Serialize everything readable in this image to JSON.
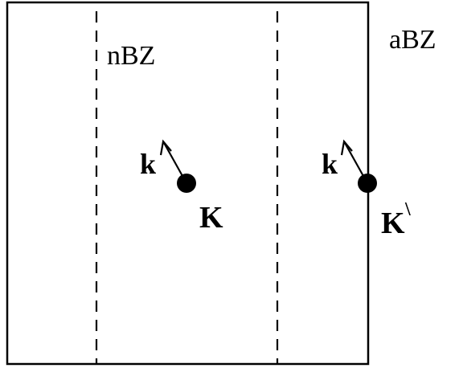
{
  "labels": {
    "nbz": "nBZ",
    "abz": "aBZ",
    "k_left": "k",
    "K_left": "K",
    "k_right": "k",
    "K_right": "K",
    "K_right_prime": "\\"
  },
  "colors": {
    "stroke": "#000000",
    "background": "#ffffff"
  }
}
